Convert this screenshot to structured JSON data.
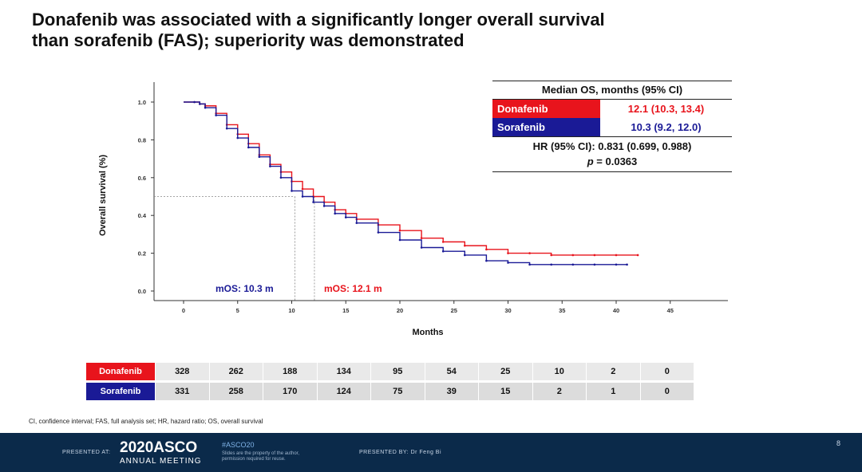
{
  "slide": {
    "title_line1": "Donafenib was associated with a significantly longer overall survival",
    "title_line2": "than sorafenib (FAS); superiority was demonstrated",
    "footnote": "CI, confidence interval; FAS, full analysis set; HR, hazard ratio; OS, overall survival",
    "page_number": "8"
  },
  "colors": {
    "donafenib": "#e8141c",
    "sorafenib": "#1a1a96",
    "bar": "#0b2a4a"
  },
  "stats_table": {
    "header": "Median OS, months (95% CI)",
    "rows": [
      {
        "name": "Donafenib",
        "value": "12.1 (10.3, 13.4)"
      },
      {
        "name": "Sorafenib",
        "value": "10.3 (9.2, 12.0)"
      }
    ],
    "hr": "HR (95% CI): 0.831 (0.699, 0.988)",
    "p_label": "p",
    "p_value": " = 0.0363"
  },
  "risk_table": {
    "rows": [
      {
        "name": "Donafenib",
        "values": [
          "328",
          "262",
          "188",
          "134",
          "95",
          "54",
          "25",
          "10",
          "2",
          "0"
        ]
      },
      {
        "name": "Sorafenib",
        "values": [
          "331",
          "258",
          "170",
          "124",
          "75",
          "39",
          "15",
          "2",
          "1",
          "0"
        ]
      }
    ]
  },
  "footer": {
    "presented_at": "PRESENTED AT:",
    "meeting_year_brand": "2020ASCO",
    "meeting_name": "ANNUAL MEETING",
    "hashtag": "#ASCO20",
    "slides_note": "Slides are the property of the author, permission required for reuse.",
    "presented_by": "PRESENTED BY: Dr Feng Bi"
  },
  "chart_data": {
    "type": "line",
    "xlabel": "Months",
    "ylabel": "Overall survival (%)",
    "xlim": [
      0,
      45
    ],
    "ylim": [
      0,
      1.0
    ],
    "x_ticks": [
      0,
      5,
      10,
      15,
      20,
      25,
      30,
      35,
      40,
      45
    ],
    "y_ticks": [
      0.0,
      0.2,
      0.4,
      0.6,
      0.8,
      1.0
    ],
    "y_tick_labels": [
      "0.0",
      "0.2",
      "0.4",
      "0.6",
      "0.8",
      "1.0"
    ],
    "median_reference": 0.5,
    "series": [
      {
        "name": "Donafenib",
        "x": [
          0,
          1,
          1.5,
          2,
          3,
          4,
          5,
          6,
          7,
          8,
          9,
          10,
          11,
          12,
          13,
          14,
          15,
          16,
          18,
          20,
          22,
          24,
          26,
          28,
          30,
          32,
          34,
          36,
          38,
          40,
          42
        ],
        "y": [
          1.0,
          1.0,
          0.99,
          0.98,
          0.94,
          0.88,
          0.83,
          0.78,
          0.72,
          0.67,
          0.63,
          0.58,
          0.54,
          0.5,
          0.47,
          0.43,
          0.41,
          0.38,
          0.35,
          0.32,
          0.28,
          0.26,
          0.24,
          0.22,
          0.2,
          0.2,
          0.19,
          0.19,
          0.19,
          0.19,
          0.19
        ]
      },
      {
        "name": "Sorafenib",
        "x": [
          0,
          1,
          1.5,
          2,
          3,
          4,
          5,
          6,
          7,
          8,
          9,
          10,
          11,
          12,
          13,
          14,
          15,
          16,
          18,
          20,
          22,
          24,
          26,
          28,
          30,
          32,
          34,
          36,
          38,
          40,
          41
        ],
        "y": [
          1.0,
          1.0,
          0.99,
          0.97,
          0.93,
          0.86,
          0.81,
          0.76,
          0.71,
          0.66,
          0.6,
          0.53,
          0.5,
          0.47,
          0.45,
          0.41,
          0.39,
          0.36,
          0.31,
          0.27,
          0.23,
          0.21,
          0.19,
          0.16,
          0.15,
          0.14,
          0.14,
          0.14,
          0.14,
          0.14,
          0.14
        ]
      }
    ],
    "annotations": [
      {
        "text": "mOS: 10.3 m",
        "x": 10.3,
        "series": "Sorafenib"
      },
      {
        "text": "mOS: 12.1 m",
        "x": 12.1,
        "series": "Donafenib"
      }
    ]
  }
}
